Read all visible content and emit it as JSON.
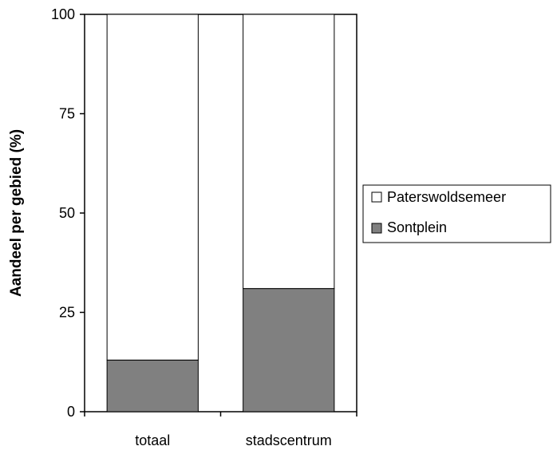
{
  "chart_data": {
    "type": "bar",
    "stacked": true,
    "categories": [
      "totaal",
      "stadscentrum"
    ],
    "series": [
      {
        "name": "Sontplein",
        "values": [
          13,
          31
        ],
        "color": "#808080"
      },
      {
        "name": "Paterswoldsemeer",
        "values": [
          87,
          69
        ],
        "color": "#ffffff"
      }
    ],
    "ylabel": "Aandeel per gebied (%)",
    "xlabel": "",
    "ylim": [
      0,
      100
    ],
    "yticks": [
      0,
      25,
      50,
      75,
      100
    ],
    "legend_items": [
      "Paterswoldsemeer",
      "Sontplein"
    ],
    "legend_position": "right",
    "grid": false
  }
}
